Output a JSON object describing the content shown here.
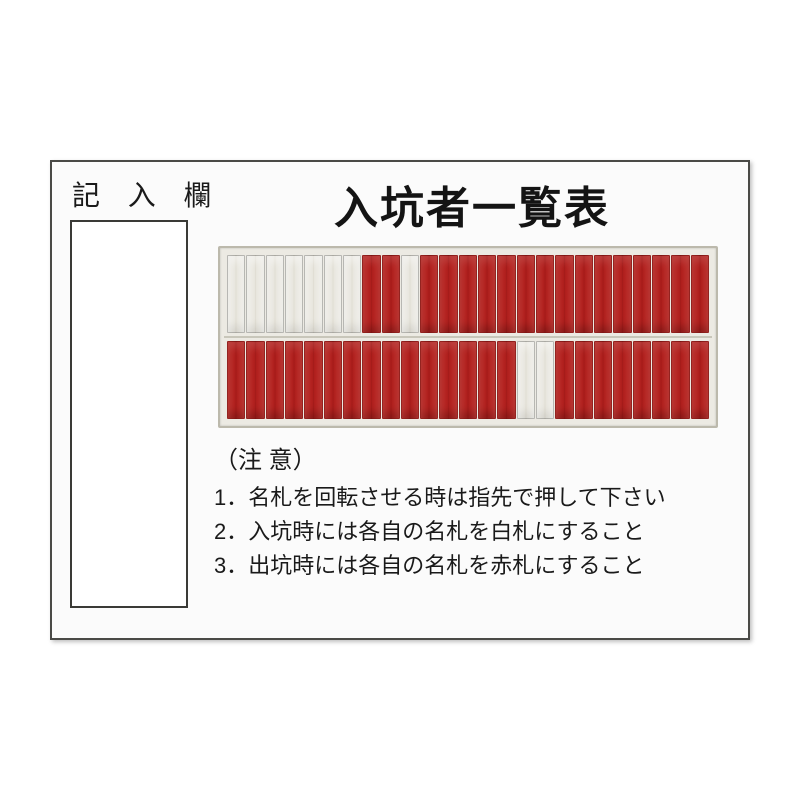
{
  "board": {
    "entry_label": "記 入 欄",
    "title": "入坑者一覧表",
    "colors": {
      "tag_red": "#b0201e",
      "tag_white": "#eceae3",
      "border": "#4a4a46",
      "background": "#fbfbfb"
    },
    "rack": {
      "rows": 2,
      "columns_per_row": 25,
      "row1": [
        "white",
        "white",
        "white",
        "white",
        "white",
        "white",
        "white",
        "red",
        "red",
        "white",
        "red",
        "red",
        "red",
        "red",
        "red",
        "red",
        "red",
        "red",
        "red",
        "red",
        "red",
        "red",
        "red",
        "red",
        "red"
      ],
      "row2": [
        "red",
        "red",
        "red",
        "red",
        "red",
        "red",
        "red",
        "red",
        "red",
        "red",
        "red",
        "red",
        "red",
        "red",
        "red",
        "white",
        "white",
        "red",
        "red",
        "red",
        "red",
        "red",
        "red",
        "red",
        "red"
      ]
    },
    "notes": {
      "heading": "（注 意）",
      "lines": [
        "1．名札を回転させる時は指先で押して下さい",
        "2．入坑時には各自の名札を白札にすること",
        "3．出坑時には各自の名札を赤札にすること"
      ]
    }
  }
}
